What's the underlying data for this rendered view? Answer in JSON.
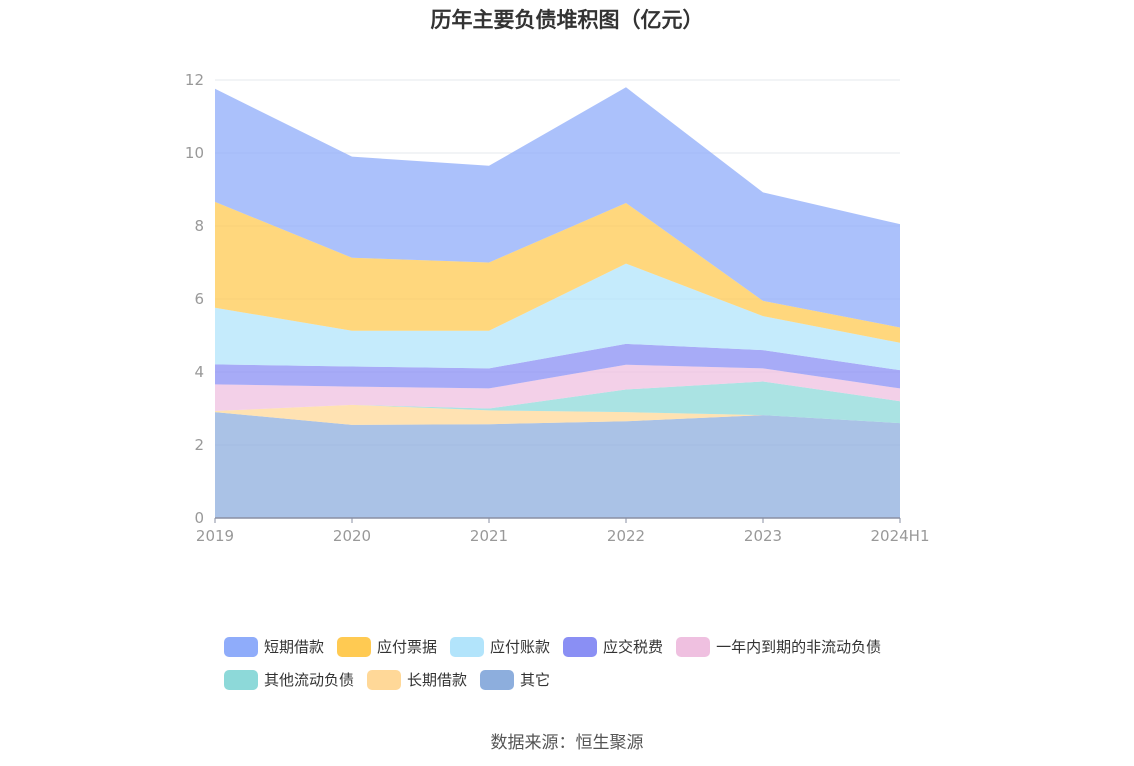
{
  "title": "历年主要负债堆积图（亿元）",
  "source": "数据来源：恒生聚源",
  "chart_data": {
    "type": "area",
    "stacked": true,
    "title": "历年主要负债堆积图（亿元）",
    "categories": [
      "2019",
      "2020",
      "2021",
      "2022",
      "2023",
      "2024H1"
    ],
    "y_ticks": [
      "0",
      "2",
      "4",
      "6",
      "8",
      "10",
      "12"
    ],
    "ylim": [
      0,
      12
    ],
    "grid": true,
    "legend_position": "bottom",
    "series": [
      {
        "name": "其它",
        "color": "#8daedd",
        "values": [
          2.9,
          2.55,
          2.57,
          2.65,
          2.82,
          2.6
        ]
      },
      {
        "name": "长期借款",
        "color": "#ffd898",
        "values": [
          0.03,
          0.55,
          0.38,
          0.25,
          0.0,
          0.0
        ]
      },
      {
        "name": "其他流动负债",
        "color": "#8dd9d9",
        "values": [
          0.0,
          0.0,
          0.05,
          0.62,
          0.92,
          0.6
        ]
      },
      {
        "name": "一年内到期的非流动负债",
        "color": "#efc0e0",
        "values": [
          0.73,
          0.5,
          0.55,
          0.68,
          0.36,
          0.35
        ]
      },
      {
        "name": "应交税费",
        "color": "#8a8ff4",
        "values": [
          0.55,
          0.55,
          0.55,
          0.57,
          0.5,
          0.5
        ]
      },
      {
        "name": "应付账款",
        "color": "#b2e4fb",
        "values": [
          1.55,
          0.98,
          1.03,
          2.2,
          0.93,
          0.75
        ]
      },
      {
        "name": "应付票据",
        "color": "#ffca52",
        "values": [
          2.9,
          2.0,
          1.87,
          1.66,
          0.42,
          0.42
        ]
      },
      {
        "name": "短期借款",
        "color": "#8facfa",
        "values": [
          3.1,
          2.77,
          2.65,
          3.17,
          2.97,
          2.83
        ]
      }
    ],
    "legend_order": [
      "短期借款",
      "应付票据",
      "应付账款",
      "应交税费",
      "一年内到期的非流动负债",
      "其他流动负债",
      "长期借款",
      "其它"
    ]
  }
}
